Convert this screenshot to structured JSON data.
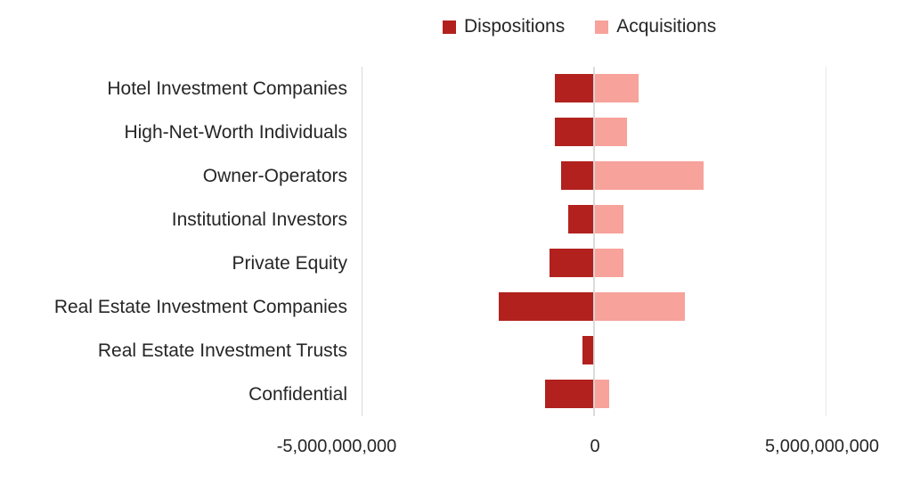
{
  "chart_data": {
    "type": "bar",
    "orientation": "horizontal-diverging",
    "title": "",
    "categories": [
      "Hotel Investment Companies",
      "High-Net-Worth Individuals",
      "Owner-Operators",
      "Institutional Investors",
      "Private Equity",
      "Real Estate Investment Companies",
      "Real Estate Investment Trusts",
      "Confidential"
    ],
    "series": [
      {
        "name": "Dispositions",
        "color": "#b2211e",
        "values": [
          -850000000,
          -850000000,
          -700000000,
          -550000000,
          -950000000,
          -2050000000,
          -250000000,
          -1050000000
        ]
      },
      {
        "name": "Acquisitions",
        "color": "#f7a29b",
        "values": [
          950000000,
          700000000,
          2350000000,
          630000000,
          630000000,
          1950000000,
          0,
          320000000
        ]
      }
    ],
    "xlim": [
      -5000000000,
      5000000000
    ],
    "x_tick_labels": [
      "-5,000,000,000",
      "0",
      "5,000,000,000"
    ],
    "grid": "vertical gridlines at axis min, zero and max only",
    "legend_position": "top-center",
    "gridline_color": "#d9d9d9",
    "text_color": "#262626",
    "background_color": "#ffffff"
  }
}
